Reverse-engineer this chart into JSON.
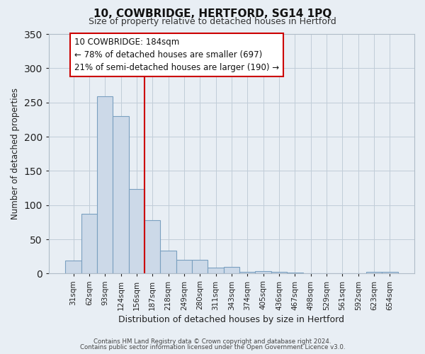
{
  "title": "10, COWBRIDGE, HERTFORD, SG14 1PQ",
  "subtitle": "Size of property relative to detached houses in Hertford",
  "xlabel": "Distribution of detached houses by size in Hertford",
  "ylabel": "Number of detached properties",
  "bar_color": "#ccd9e8",
  "bar_edge_color": "#7aa0c0",
  "categories": [
    "31sqm",
    "62sqm",
    "93sqm",
    "124sqm",
    "156sqm",
    "187sqm",
    "218sqm",
    "249sqm",
    "280sqm",
    "311sqm",
    "343sqm",
    "374sqm",
    "405sqm",
    "436sqm",
    "467sqm",
    "498sqm",
    "529sqm",
    "561sqm",
    "592sqm",
    "623sqm",
    "654sqm"
  ],
  "values": [
    19,
    87,
    259,
    230,
    123,
    78,
    33,
    20,
    20,
    9,
    10,
    3,
    4,
    2,
    1,
    0,
    0,
    0,
    0,
    2,
    2
  ],
  "ylim": [
    0,
    350
  ],
  "yticks": [
    0,
    50,
    100,
    150,
    200,
    250,
    300,
    350
  ],
  "vline_color": "#cc0000",
  "annotation_title": "10 COWBRIDGE: 184sqm",
  "annotation_line1": "← 78% of detached houses are smaller (697)",
  "annotation_line2": "21% of semi-detached houses are larger (190) →",
  "annotation_box_color": "#ffffff",
  "annotation_box_edge": "#cc0000",
  "footer_line1": "Contains HM Land Registry data © Crown copyright and database right 2024.",
  "footer_line2": "Contains public sector information licensed under the Open Government Licence v3.0.",
  "background_color": "#e8eef4",
  "plot_background": "#e8eef4",
  "grid_color": "#c0ccd8"
}
